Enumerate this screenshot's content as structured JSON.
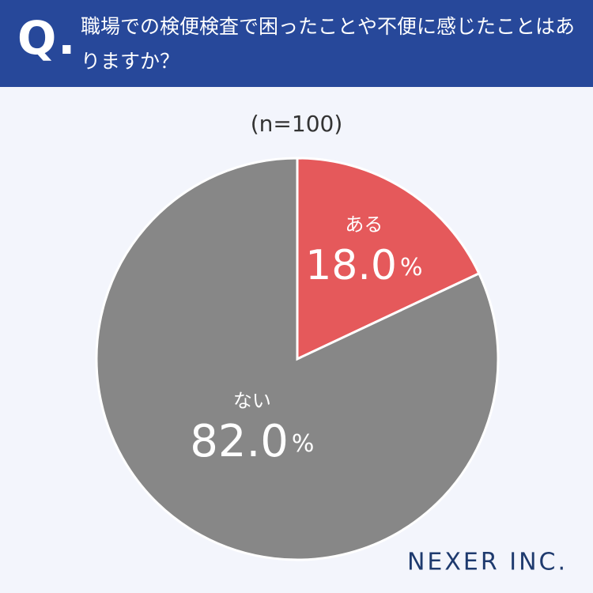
{
  "chart_data": {
    "type": "pie",
    "title_prefix": "Q.",
    "title": "職場での検便検査で困ったことや不便に感じたことはありますか？",
    "subtitle": "(n=100)",
    "brand": "NEXER INC.",
    "categories": [
      "ある",
      "ない"
    ],
    "values": [
      18.0,
      82.0
    ],
    "value_labels": [
      "18.0%",
      "82.0%"
    ],
    "colors": [
      "#e5595b",
      "#878787"
    ]
  }
}
